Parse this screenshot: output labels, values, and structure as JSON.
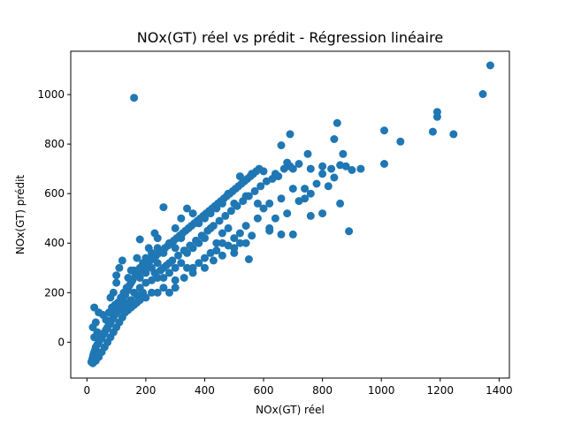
{
  "chart_data": {
    "type": "scatter",
    "title": "NOx(GT) réel vs prédit - Régression linéaire",
    "xlabel": "NOx(GT) réel",
    "ylabel": "NOx(GT) prédit",
    "xlim": [
      -55,
      1435
    ],
    "ylim": [
      -145,
      1175
    ],
    "xticks": [
      0,
      200,
      400,
      600,
      800,
      1000,
      1200,
      1400
    ],
    "yticks": [
      0,
      200,
      400,
      600,
      800,
      1000
    ],
    "grid": false,
    "marker_color": "#1f77b4",
    "points": [
      [
        1370,
        1118
      ],
      [
        1345,
        1002
      ],
      [
        160,
        987
      ],
      [
        1190,
        930
      ],
      [
        1190,
        910
      ],
      [
        1010,
        855
      ],
      [
        1175,
        850
      ],
      [
        1245,
        840
      ],
      [
        1065,
        810
      ],
      [
        850,
        885
      ],
      [
        840,
        820
      ],
      [
        870,
        760
      ],
      [
        690,
        840
      ],
      [
        660,
        795
      ],
      [
        1010,
        720
      ],
      [
        930,
        700
      ],
      [
        900,
        695
      ],
      [
        880,
        710
      ],
      [
        860,
        715
      ],
      [
        830,
        700
      ],
      [
        800,
        710
      ],
      [
        760,
        700
      ],
      [
        750,
        760
      ],
      [
        720,
        720
      ],
      [
        700,
        700
      ],
      [
        680,
        725
      ],
      [
        640,
        680
      ],
      [
        600,
        690
      ],
      [
        560,
        680
      ],
      [
        520,
        670
      ],
      [
        840,
        665
      ],
      [
        820,
        630
      ],
      [
        800,
        680
      ],
      [
        780,
        640
      ],
      [
        760,
        600
      ],
      [
        740,
        620
      ],
      [
        720,
        570
      ],
      [
        700,
        620
      ],
      [
        660,
        580
      ],
      [
        620,
        560
      ],
      [
        600,
        540
      ],
      [
        580,
        560
      ],
      [
        540,
        590
      ],
      [
        500,
        560
      ],
      [
        480,
        600
      ],
      [
        460,
        560
      ],
      [
        440,
        540
      ],
      [
        420,
        520
      ],
      [
        400,
        500
      ],
      [
        380,
        480
      ],
      [
        360,
        520
      ],
      [
        340,
        540
      ],
      [
        320,
        500
      ],
      [
        300,
        460
      ],
      [
        860,
        560
      ],
      [
        800,
        520
      ],
      [
        760,
        510
      ],
      [
        740,
        580
      ],
      [
        680,
        520
      ],
      [
        640,
        500
      ],
      [
        620,
        460
      ],
      [
        580,
        500
      ],
      [
        540,
        470
      ],
      [
        520,
        440
      ],
      [
        500,
        420
      ],
      [
        480,
        460
      ],
      [
        460,
        440
      ],
      [
        440,
        400
      ],
      [
        420,
        460
      ],
      [
        400,
        420
      ],
      [
        380,
        400
      ],
      [
        360,
        380
      ],
      [
        340,
        360
      ],
      [
        320,
        420
      ],
      [
        300,
        380
      ],
      [
        280,
        400
      ],
      [
        260,
        360
      ],
      [
        240,
        380
      ],
      [
        890,
        448
      ],
      [
        700,
        435
      ],
      [
        660,
        435
      ],
      [
        620,
        450
      ],
      [
        560,
        430
      ],
      [
        540,
        400
      ],
      [
        520,
        400
      ],
      [
        500,
        380
      ],
      [
        480,
        390
      ],
      [
        460,
        400
      ],
      [
        440,
        370
      ],
      [
        420,
        360
      ],
      [
        400,
        340
      ],
      [
        380,
        320
      ],
      [
        360,
        300
      ],
      [
        340,
        300
      ],
      [
        320,
        320
      ],
      [
        300,
        300
      ],
      [
        280,
        320
      ],
      [
        260,
        300
      ],
      [
        240,
        320
      ],
      [
        220,
        300
      ],
      [
        200,
        280
      ],
      [
        180,
        260
      ],
      [
        550,
        335
      ],
      [
        500,
        360
      ],
      [
        460,
        350
      ],
      [
        430,
        330
      ],
      [
        400,
        300
      ],
      [
        360,
        280
      ],
      [
        330,
        260
      ],
      [
        300,
        250
      ],
      [
        280,
        280
      ],
      [
        260,
        260
      ],
      [
        240,
        260
      ],
      [
        220,
        250
      ],
      [
        200,
        240
      ],
      [
        180,
        220
      ],
      [
        160,
        200
      ],
      [
        150,
        240
      ],
      [
        140,
        210
      ],
      [
        130,
        190
      ],
      [
        260,
        545
      ],
      [
        240,
        420
      ],
      [
        230,
        440
      ],
      [
        220,
        360
      ],
      [
        210,
        380
      ],
      [
        200,
        340
      ],
      [
        190,
        320
      ],
      [
        180,
        300
      ],
      [
        170,
        340
      ],
      [
        160,
        290
      ],
      [
        150,
        290
      ],
      [
        140,
        260
      ],
      [
        120,
        330
      ],
      [
        110,
        300
      ],
      [
        100,
        270
      ],
      [
        100,
        240
      ],
      [
        90,
        200
      ],
      [
        80,
        180
      ],
      [
        180,
        415
      ],
      [
        300,
        220
      ],
      [
        280,
        200
      ],
      [
        260,
        220
      ],
      [
        240,
        200
      ],
      [
        220,
        200
      ],
      [
        200,
        180
      ],
      [
        190,
        200
      ],
      [
        180,
        170
      ],
      [
        170,
        190
      ],
      [
        160,
        160
      ],
      [
        150,
        170
      ],
      [
        140,
        150
      ],
      [
        130,
        160
      ],
      [
        120,
        140
      ],
      [
        110,
        130
      ],
      [
        100,
        120
      ],
      [
        95,
        110
      ],
      [
        90,
        100
      ],
      [
        85,
        90
      ],
      [
        80,
        80
      ],
      [
        75,
        70
      ],
      [
        70,
        60
      ],
      [
        65,
        50
      ],
      [
        60,
        40
      ],
      [
        55,
        30
      ],
      [
        50,
        20
      ],
      [
        45,
        10
      ],
      [
        40,
        0
      ],
      [
        35,
        -10
      ],
      [
        30,
        -20
      ],
      [
        28,
        -30
      ],
      [
        25,
        -40
      ],
      [
        22,
        -50
      ],
      [
        20,
        -60
      ],
      [
        18,
        -70
      ],
      [
        15,
        -80
      ],
      [
        20,
        -85
      ],
      [
        30,
        -75
      ],
      [
        40,
        -60
      ],
      [
        50,
        -40
      ],
      [
        60,
        -20
      ],
      [
        70,
        0
      ],
      [
        80,
        20
      ],
      [
        90,
        40
      ],
      [
        100,
        60
      ],
      [
        110,
        80
      ],
      [
        120,
        100
      ],
      [
        130,
        120
      ],
      [
        140,
        130
      ],
      [
        150,
        140
      ],
      [
        160,
        150
      ],
      [
        170,
        160
      ],
      [
        180,
        180
      ],
      [
        25,
        140
      ],
      [
        40,
        120
      ],
      [
        30,
        80
      ],
      [
        20,
        60
      ],
      [
        35,
        40
      ],
      [
        25,
        20
      ],
      [
        55,
        110
      ],
      [
        65,
        90
      ],
      [
        75,
        120
      ],
      [
        85,
        140
      ],
      [
        95,
        150
      ],
      [
        105,
        160
      ],
      [
        115,
        180
      ],
      [
        125,
        200
      ],
      [
        135,
        220
      ],
      [
        145,
        230
      ],
      [
        155,
        250
      ],
      [
        165,
        270
      ],
      [
        175,
        280
      ],
      [
        185,
        290
      ],
      [
        195,
        300
      ],
      [
        205,
        310
      ],
      [
        215,
        330
      ],
      [
        225,
        340
      ],
      [
        235,
        350
      ],
      [
        245,
        360
      ],
      [
        255,
        370
      ],
      [
        265,
        380
      ],
      [
        275,
        390
      ],
      [
        285,
        400
      ],
      [
        295,
        410
      ],
      [
        305,
        420
      ],
      [
        315,
        430
      ],
      [
        325,
        440
      ],
      [
        335,
        450
      ],
      [
        345,
        460
      ],
      [
        355,
        470
      ],
      [
        365,
        480
      ],
      [
        375,
        490
      ],
      [
        385,
        500
      ],
      [
        395,
        510
      ],
      [
        405,
        520
      ],
      [
        415,
        530
      ],
      [
        425,
        540
      ],
      [
        435,
        550
      ],
      [
        445,
        560
      ],
      [
        455,
        570
      ],
      [
        465,
        580
      ],
      [
        475,
        590
      ],
      [
        485,
        600
      ],
      [
        495,
        610
      ],
      [
        505,
        620
      ],
      [
        515,
        630
      ],
      [
        525,
        640
      ],
      [
        535,
        650
      ],
      [
        545,
        660
      ],
      [
        555,
        670
      ],
      [
        565,
        680
      ],
      [
        575,
        690
      ],
      [
        585,
        700
      ],
      [
        230,
        280
      ],
      [
        250,
        290
      ],
      [
        270,
        310
      ],
      [
        290,
        330
      ],
      [
        310,
        350
      ],
      [
        330,
        370
      ],
      [
        350,
        390
      ],
      [
        370,
        410
      ],
      [
        390,
        430
      ],
      [
        410,
        450
      ],
      [
        430,
        470
      ],
      [
        450,
        490
      ],
      [
        470,
        510
      ],
      [
        490,
        530
      ],
      [
        510,
        550
      ],
      [
        530,
        570
      ],
      [
        550,
        590
      ],
      [
        570,
        610
      ],
      [
        590,
        630
      ],
      [
        610,
        650
      ],
      [
        630,
        660
      ],
      [
        650,
        670
      ],
      [
        670,
        700
      ],
      [
        690,
        710
      ]
    ]
  }
}
